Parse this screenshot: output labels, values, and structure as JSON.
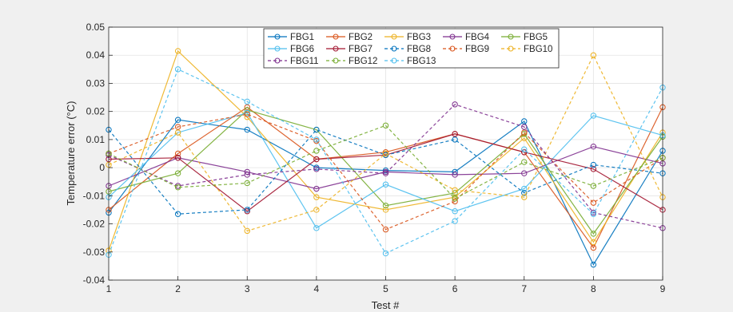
{
  "chart_data": {
    "type": "line",
    "title": "",
    "xlabel": "Test #",
    "ylabel": "Temperature error (°C)",
    "xlim": [
      1,
      9
    ],
    "ylim": [
      -0.04,
      0.05
    ],
    "grid": true,
    "legend_position": "top-center",
    "x": [
      1,
      2,
      3,
      4,
      5,
      6,
      7,
      8,
      9
    ],
    "xticks": [
      "1",
      "2",
      "3",
      "4",
      "5",
      "6",
      "7",
      "8",
      "9"
    ],
    "yticks": [
      "-0.04",
      "-0.03",
      "-0.02",
      "-0.01",
      "0",
      "0.01",
      "0.02",
      "0.03",
      "0.04",
      "0.05"
    ],
    "series": [
      {
        "name": "FBG1",
        "color": "#0072BD",
        "dash": "solid",
        "values": [
          -0.016,
          0.017,
          0.0135,
          0.0,
          -0.001,
          -0.0015,
          0.0165,
          -0.0345,
          0.006
        ]
      },
      {
        "name": "FBG2",
        "color": "#D95319",
        "dash": "solid",
        "values": [
          -0.015,
          0.005,
          0.0215,
          0.003,
          0.0055,
          0.012,
          0.0055,
          -0.0285,
          0.0215
        ]
      },
      {
        "name": "FBG3",
        "color": "#EDB120",
        "dash": "solid",
        "values": [
          -0.0295,
          0.0415,
          0.018,
          -0.0105,
          -0.015,
          -0.0105,
          0.0105,
          -0.0265,
          0.0125
        ]
      },
      {
        "name": "FBG4",
        "color": "#7E2F8E",
        "dash": "solid",
        "values": [
          -0.0065,
          0.0035,
          -0.0015,
          -0.0075,
          -0.0015,
          -0.0025,
          -0.002,
          0.0075,
          0.0015
        ]
      },
      {
        "name": "FBG5",
        "color": "#77AC30",
        "dash": "solid",
        "values": [
          -0.0085,
          -0.002,
          0.0205,
          0.0135,
          -0.0135,
          -0.009,
          0.012,
          -0.0235,
          0.011
        ]
      },
      {
        "name": "FBG6",
        "color": "#4DBEEE",
        "dash": "solid",
        "values": [
          -0.0105,
          0.0125,
          0.0195,
          -0.0215,
          -0.006,
          -0.0155,
          -0.0075,
          0.0185,
          0.0115
        ]
      },
      {
        "name": "FBG7",
        "color": "#A2142F",
        "dash": "solid",
        "values": [
          0.003,
          0.0035,
          -0.0155,
          0.003,
          0.0045,
          0.012,
          0.0055,
          -0.0005,
          -0.015
        ]
      },
      {
        "name": "FBG8",
        "color": "#0072BD",
        "dash": "dashed",
        "values": [
          0.0135,
          -0.0165,
          -0.015,
          0.0135,
          0.0045,
          0.01,
          -0.009,
          0.001,
          -0.002
        ]
      },
      {
        "name": "FBG9",
        "color": "#D95319",
        "dash": "dashed",
        "values": [
          0.005,
          0.0145,
          0.019,
          0.0095,
          -0.022,
          -0.012,
          0.0125,
          -0.0125,
          0.0035
        ]
      },
      {
        "name": "FBG10",
        "color": "#EDB120",
        "dash": "dashed",
        "values": [
          0.001,
          0.0125,
          -0.0225,
          -0.015,
          0.005,
          -0.008,
          -0.0105,
          0.04,
          -0.0105
        ]
      },
      {
        "name": "FBG11",
        "color": "#7E2F8E",
        "dash": "dashed",
        "values": [
          0.0045,
          -0.0065,
          -0.0025,
          -0.0005,
          -0.002,
          0.0225,
          0.0145,
          -0.016,
          -0.0215
        ]
      },
      {
        "name": "FBG12",
        "color": "#77AC30",
        "dash": "dashed",
        "values": [
          0.005,
          -0.007,
          -0.0055,
          0.006,
          0.015,
          -0.011,
          0.002,
          -0.0065,
          0.0035
        ]
      },
      {
        "name": "FBG13",
        "color": "#4DBEEE",
        "dash": "dashed",
        "values": [
          -0.031,
          0.035,
          0.0235,
          0.01,
          -0.0305,
          -0.019,
          0.0065,
          -0.0165,
          0.0285
        ]
      }
    ]
  }
}
